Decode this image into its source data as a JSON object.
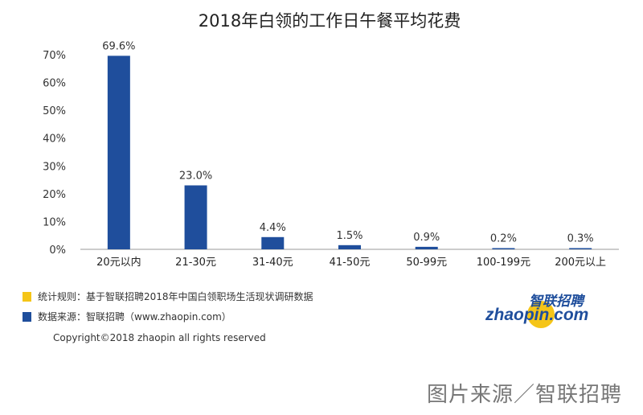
{
  "chart_data": {
    "type": "bar",
    "title": "2018年白领的工作日午餐平均花费",
    "categories": [
      "20元以内",
      "21-30元",
      "31-40元",
      "41-50元",
      "50-99元",
      "100-199元",
      "200元以上"
    ],
    "values": [
      69.6,
      23.0,
      4.4,
      1.5,
      0.9,
      0.2,
      0.3
    ],
    "data_labels": [
      "69.6%",
      "23.0%",
      "4.4%",
      "1.5%",
      "0.9%",
      "0.2%",
      "0.3%"
    ],
    "yticks": [
      "0%",
      "10%",
      "20%",
      "30%",
      "40%",
      "50%",
      "60%",
      "70%"
    ],
    "ylim": [
      0,
      70
    ],
    "grid": false,
    "bar_color": "#1f4e9c"
  },
  "notes": {
    "rule": {
      "color": "#f5c518",
      "text": "统计规则：基于智联招聘2018年中国白领职场生活现状调研数据"
    },
    "source": {
      "color": "#1f4e9c",
      "text": "数据来源：智联招聘（www.zhaopin.com）"
    }
  },
  "copyright": "Copyright©2018 zhaopin all rights reserved",
  "logo": {
    "cn": "智联招聘",
    "en": "zhaopin.com"
  },
  "image_source": "图片来源／智联招聘"
}
